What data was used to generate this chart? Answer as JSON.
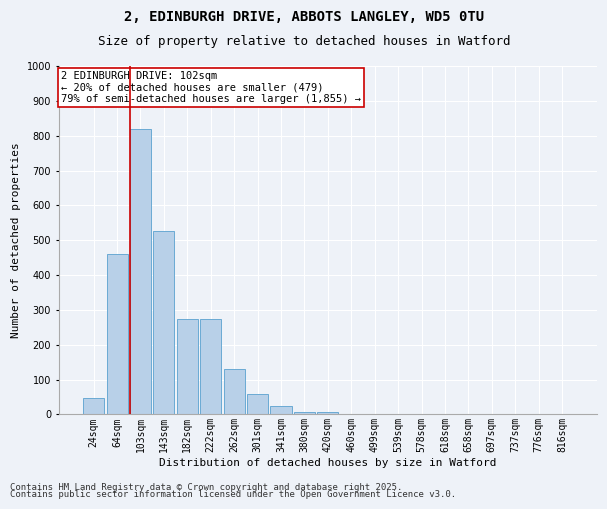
{
  "title1": "2, EDINBURGH DRIVE, ABBOTS LANGLEY, WD5 0TU",
  "title2": "Size of property relative to detached houses in Watford",
  "xlabel": "Distribution of detached houses by size in Watford",
  "ylabel": "Number of detached properties",
  "categories": [
    "24sqm",
    "64sqm",
    "103sqm",
    "143sqm",
    "182sqm",
    "222sqm",
    "262sqm",
    "301sqm",
    "341sqm",
    "380sqm",
    "420sqm",
    "460sqm",
    "499sqm",
    "539sqm",
    "578sqm",
    "618sqm",
    "658sqm",
    "697sqm",
    "737sqm",
    "776sqm",
    "816sqm"
  ],
  "values": [
    46,
    460,
    820,
    525,
    275,
    275,
    130,
    60,
    25,
    8,
    8,
    0,
    0,
    0,
    0,
    0,
    0,
    0,
    0,
    0,
    0
  ],
  "bar_color": "#b8d0e8",
  "bar_edge_color": "#6aaad4",
  "vline_color": "#cc0000",
  "annotation_text": "2 EDINBURGH DRIVE: 102sqm\n← 20% of detached houses are smaller (479)\n79% of semi-detached houses are larger (1,855) →",
  "annotation_box_color": "#ffffff",
  "annotation_edge_color": "#cc0000",
  "ylim": [
    0,
    1000
  ],
  "yticks": [
    0,
    100,
    200,
    300,
    400,
    500,
    600,
    700,
    800,
    900,
    1000
  ],
  "footer1": "Contains HM Land Registry data © Crown copyright and database right 2025.",
  "footer2": "Contains public sector information licensed under the Open Government Licence v3.0.",
  "background_color": "#eef2f8",
  "grid_color": "#ffffff",
  "title_fontsize": 10,
  "subtitle_fontsize": 9,
  "axis_label_fontsize": 8,
  "tick_fontsize": 7,
  "annotation_fontsize": 7.5,
  "footer_fontsize": 6.5
}
